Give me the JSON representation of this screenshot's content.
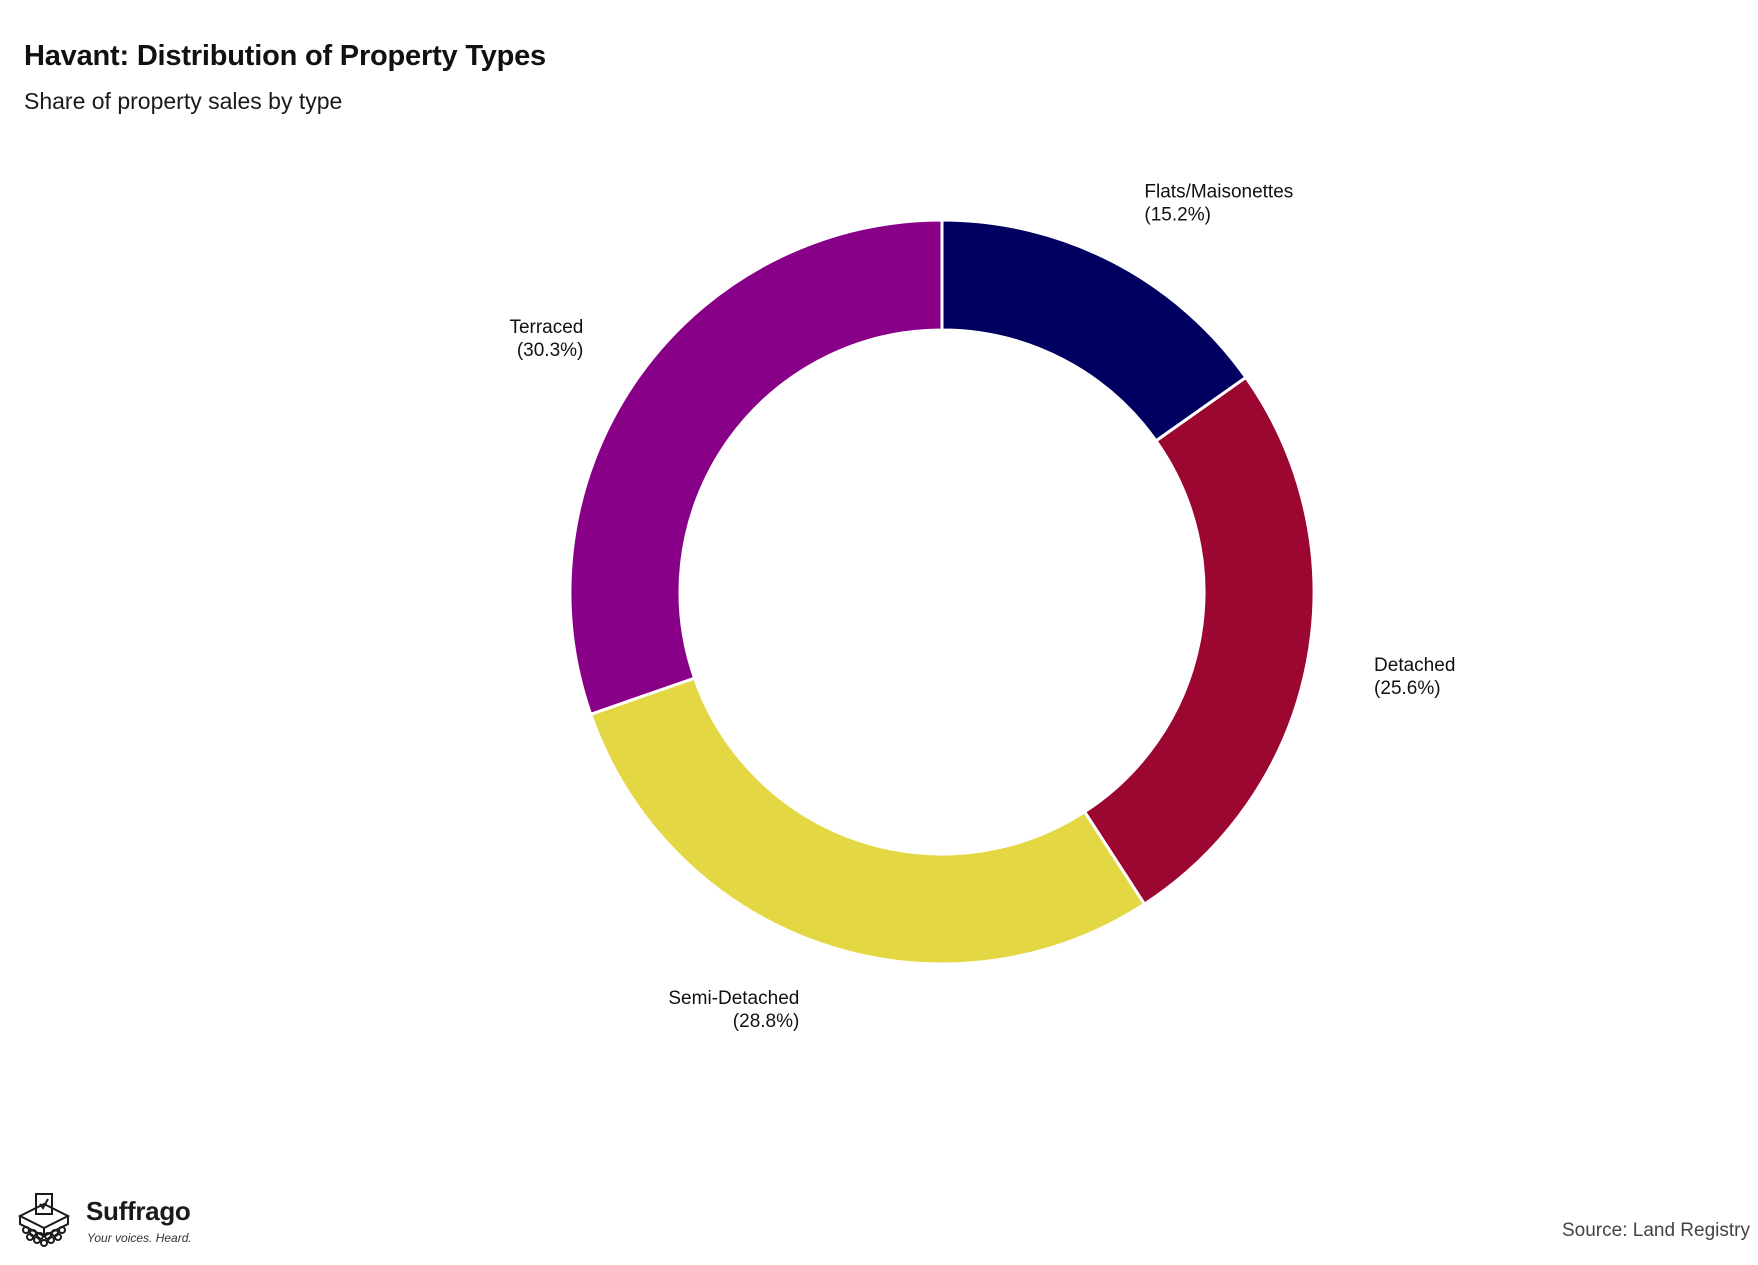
{
  "chart_data": {
    "type": "pie",
    "title": "Havant: Distribution of Property Types",
    "subtitle": "Share of property sales by type",
    "donut": true,
    "slices": [
      {
        "label": "Flats/Maisonettes",
        "value": 15.2,
        "value_label": "(15.2%)",
        "color": "#000060"
      },
      {
        "label": "Detached",
        "value": 25.6,
        "value_label": "(25.6%)",
        "color": "#9b0731"
      },
      {
        "label": "Semi-Detached",
        "value": 28.8,
        "value_label": "(28.8%)",
        "color": "#e3d843"
      },
      {
        "label": "Terraced",
        "value": 30.3,
        "value_label": "(30.3%)",
        "color": "#880088"
      }
    ]
  },
  "branding": {
    "name": "Suffrago",
    "tagline": "Your voices. Heard.",
    "logo_icon": "ballot-box-icon"
  },
  "source": "Source: Land Registry"
}
